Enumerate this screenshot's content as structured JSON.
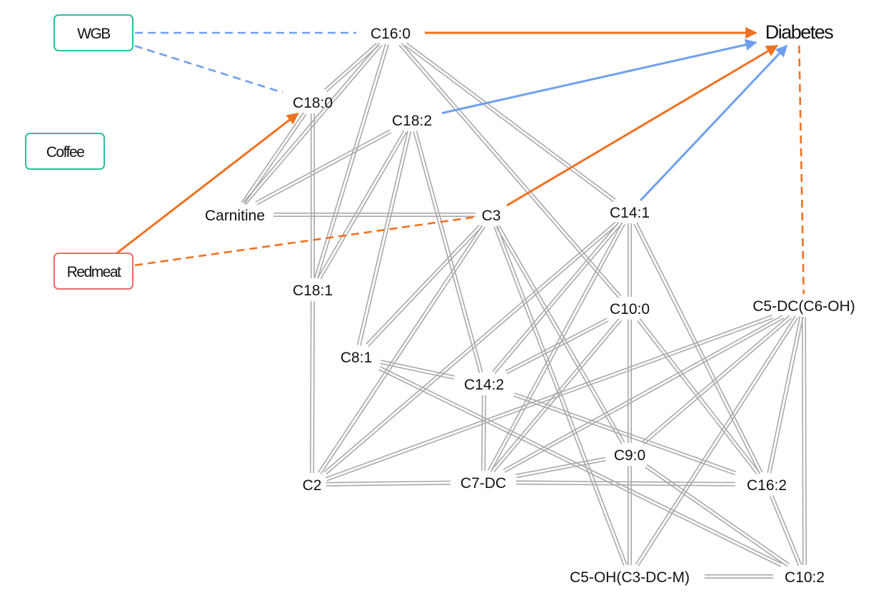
{
  "colors": {
    "positive": "#f07020",
    "negative": "#6fa0ee",
    "exposure_border_green": "#2bbf9a",
    "exposure_border_red": "#e86a6a",
    "correlation": "#a9a9a9"
  },
  "exposures": [
    {
      "id": "wgb",
      "label": "WGB",
      "border": "green"
    },
    {
      "id": "coffee",
      "label": "Coffee",
      "border": "green"
    },
    {
      "id": "redmeat",
      "label": "Redmeat",
      "border": "red"
    }
  ],
  "nodes": [
    {
      "id": "c16_0",
      "label": "C16:0"
    },
    {
      "id": "diabetes",
      "label": "Diabetes"
    },
    {
      "id": "c18_0",
      "label": "C18:0"
    },
    {
      "id": "c18_2",
      "label": "C18:2"
    },
    {
      "id": "carnitine",
      "label": "Carnitine"
    },
    {
      "id": "c3",
      "label": "C3"
    },
    {
      "id": "c14_1",
      "label": "C14:1"
    },
    {
      "id": "c18_1",
      "label": "C18:1"
    },
    {
      "id": "c10_0",
      "label": "C10:0"
    },
    {
      "id": "c5dc",
      "label": "C5-DC(C6-OH)"
    },
    {
      "id": "c8_1",
      "label": "C8:1"
    },
    {
      "id": "c14_2",
      "label": "C14:2"
    },
    {
      "id": "c9_0",
      "label": "C9:0"
    },
    {
      "id": "c2",
      "label": "C2"
    },
    {
      "id": "c7dc",
      "label": "C7-DC"
    },
    {
      "id": "c16_2",
      "label": "C16:2"
    },
    {
      "id": "c5oh",
      "label": "C5-OH(C3-DC-M)"
    },
    {
      "id": "c10_2",
      "label": "C10:2"
    }
  ],
  "directed_edges": [
    {
      "from": "c16_0",
      "to": "diabetes",
      "style": "solid",
      "color": "positive"
    },
    {
      "from": "c18_2",
      "to": "diabetes",
      "style": "solid",
      "color": "negative"
    },
    {
      "from": "c3",
      "to": "diabetes",
      "style": "solid",
      "color": "positive"
    },
    {
      "from": "c14_1",
      "to": "diabetes",
      "style": "solid",
      "color": "negative"
    },
    {
      "from": "redmeat",
      "to": "c18_0",
      "style": "solid",
      "color": "positive"
    }
  ],
  "dashed_edges": [
    {
      "from": "wgb",
      "to": "c16_0",
      "color": "negative"
    },
    {
      "from": "wgb",
      "to": "c18_0",
      "color": "negative"
    },
    {
      "from": "redmeat",
      "to": "c3",
      "color": "positive"
    },
    {
      "from": "diabetes",
      "to": "c5dc",
      "color": "positive"
    }
  ],
  "correlation_edges": [
    [
      "c16_0",
      "c18_0"
    ],
    [
      "c16_0",
      "carnitine"
    ],
    [
      "c16_0",
      "c18_1"
    ],
    [
      "c16_0",
      "c14_1"
    ],
    [
      "c16_0",
      "c10_0"
    ],
    [
      "c18_0",
      "c18_1"
    ],
    [
      "c18_0",
      "carnitine"
    ],
    [
      "c18_2",
      "carnitine"
    ],
    [
      "c18_2",
      "c18_1"
    ],
    [
      "c18_2",
      "c8_1"
    ],
    [
      "c18_2",
      "c14_2"
    ],
    [
      "carnitine",
      "c3"
    ],
    [
      "c3",
      "c8_1"
    ],
    [
      "c3",
      "c2"
    ],
    [
      "c3",
      "c9_0"
    ],
    [
      "c3",
      "c5oh"
    ],
    [
      "c14_1",
      "c10_0"
    ],
    [
      "c14_1",
      "c2"
    ],
    [
      "c14_1",
      "c7dc"
    ],
    [
      "c14_1",
      "c14_2"
    ],
    [
      "c14_1",
      "c16_2"
    ],
    [
      "c18_1",
      "c2"
    ],
    [
      "c10_0",
      "c14_2"
    ],
    [
      "c10_0",
      "c9_0"
    ],
    [
      "c10_0",
      "c7dc"
    ],
    [
      "c10_0",
      "c16_2"
    ],
    [
      "c5dc",
      "c2"
    ],
    [
      "c5dc",
      "c7dc"
    ],
    [
      "c5dc",
      "c9_0"
    ],
    [
      "c5dc",
      "c5oh"
    ],
    [
      "c5dc",
      "c16_2"
    ],
    [
      "c5dc",
      "c10_2"
    ],
    [
      "c8_1",
      "c14_2"
    ],
    [
      "c8_1",
      "c10_2"
    ],
    [
      "c14_2",
      "c7dc"
    ],
    [
      "c14_2",
      "c16_2"
    ],
    [
      "c9_0",
      "c7dc"
    ],
    [
      "c9_0",
      "c5oh"
    ],
    [
      "c9_0",
      "c10_2"
    ],
    [
      "c2",
      "c7dc"
    ],
    [
      "c7dc",
      "c16_2"
    ],
    [
      "c16_2",
      "c10_2"
    ],
    [
      "c5oh",
      "c10_2"
    ]
  ]
}
